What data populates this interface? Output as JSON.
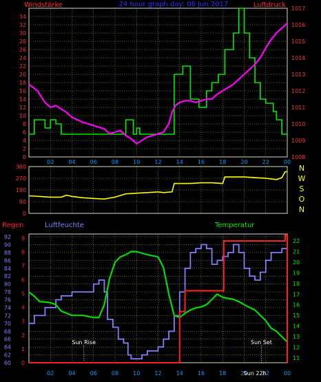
{
  "colors": {
    "background": "#000000",
    "frame": "#d8d8d8",
    "grid": "#ffff00",
    "wind": "#00ee00",
    "pressure": "#ff00ff",
    "winddir": "#ffff00",
    "rain": "#ff2020",
    "humidity": "#8080ff",
    "temperature": "#00dd00",
    "left_labels": "#ff3030",
    "right_labels": "#ff3030",
    "time_labels": "#00a0ff",
    "annotation": "#ffffff"
  },
  "header": {
    "left": "Windstärke",
    "center": "24 hour graph day: 08 Jun 2017",
    "right": "Luftdruck"
  },
  "chart_data": [
    {
      "type": "line",
      "name": "wind-pressure",
      "ylim_left": [
        0,
        36
      ],
      "ylim_right": [
        1008,
        1017
      ],
      "left_ticks": [
        "0",
        "2",
        "4",
        "6",
        "8",
        "10",
        "12",
        "14",
        "16",
        "18",
        "20",
        "22",
        "24",
        "26",
        "28",
        "30",
        "32",
        "34"
      ],
      "right_ticks": [
        "1008",
        "1009",
        "1010",
        "1011",
        "1012",
        "1013",
        "1014",
        "1015",
        "1016",
        "1017"
      ],
      "x_ticks": [
        "02",
        "04",
        "06",
        "08",
        "10",
        "12",
        "14",
        "16",
        "18",
        "20",
        "22",
        "00"
      ],
      "xlim": [
        0,
        24
      ],
      "series": [
        {
          "key": "wind",
          "axis": "left",
          "step": true,
          "x": [
            0,
            0.5,
            1.5,
            2,
            2.5,
            3,
            4,
            5,
            6,
            7,
            8,
            9,
            9.7,
            10,
            10.3,
            11,
            12,
            12.7,
            13.5,
            14.3,
            15,
            15.8,
            16.5,
            17,
            17.6,
            18.2,
            19,
            19.5,
            20,
            20.5,
            21,
            21.5,
            22,
            22.7,
            23,
            23.5,
            24
          ],
          "values": [
            5.5,
            9,
            7,
            9,
            8,
            5.5,
            5.5,
            5.5,
            5.5,
            5.5,
            5.5,
            9,
            5.5,
            7,
            5.5,
            5.5,
            5.5,
            5.5,
            20,
            22,
            14,
            12,
            16,
            18,
            20,
            26,
            30,
            36,
            30,
            24,
            18,
            14,
            13,
            11,
            9,
            5.5,
            5.5
          ]
        },
        {
          "key": "pressure",
          "axis": "right",
          "x": [
            0,
            0.8,
            1.5,
            2,
            2.5,
            3,
            3.5,
            4,
            5,
            6,
            7,
            7.5,
            8,
            8.5,
            9,
            9.5,
            10,
            10.5,
            11,
            11.5,
            12,
            12.5,
            13,
            13.3,
            13.6,
            14,
            14.5,
            15,
            15.5,
            16,
            16.5,
            17,
            17.5,
            18,
            18.5,
            19,
            19.5,
            20,
            20.5,
            21,
            21.5,
            22,
            22.5,
            23,
            23.5,
            24
          ],
          "values": [
            1012.4,
            1012.0,
            1011.3,
            1011.0,
            1011.1,
            1010.9,
            1010.7,
            1010.4,
            1010.1,
            1009.9,
            1009.7,
            1009.4,
            1009.5,
            1009.6,
            1009.3,
            1009.1,
            1008.8,
            1009.0,
            1009.2,
            1009.3,
            1009.4,
            1009.5,
            1010.0,
            1010.7,
            1011.1,
            1011.3,
            1011.4,
            1011.4,
            1011.3,
            1011.4,
            1011.5,
            1011.5,
            1011.8,
            1012.0,
            1012.2,
            1012.4,
            1012.7,
            1013.0,
            1013.3,
            1013.6,
            1014.0,
            1014.6,
            1015.1,
            1015.5,
            1015.8,
            1016.1
          ]
        }
      ]
    },
    {
      "type": "line",
      "name": "wind-direction",
      "ylim": [
        0,
        360
      ],
      "y_ticks": [
        "0",
        "90",
        "180",
        "270",
        "360"
      ],
      "direction_labels": [
        "N",
        "W",
        "S",
        "O",
        "N"
      ],
      "series": [
        {
          "key": "winddir",
          "x": [
            0,
            1,
            2,
            3,
            3.5,
            4,
            5,
            6,
            7,
            8,
            9,
            10,
            11,
            12,
            12.5,
            13.3,
            13.5,
            15,
            16,
            17,
            18,
            18.2,
            20,
            21,
            22,
            22.5,
            23,
            23.5,
            23.8,
            24
          ],
          "values": [
            135,
            130,
            125,
            125,
            140,
            130,
            120,
            115,
            110,
            125,
            150,
            155,
            160,
            165,
            160,
            165,
            230,
            230,
            235,
            235,
            230,
            280,
            280,
            275,
            270,
            265,
            260,
            275,
            320,
            320
          ]
        }
      ]
    },
    {
      "type": "line",
      "name": "rain-humidity-temperature",
      "labels": {
        "rain": "Regen",
        "humidity": "Luftfeuchte",
        "temperature": "Temperatur"
      },
      "ylim_rain": [
        0,
        9
      ],
      "ylim_humidity": [
        60,
        92
      ],
      "ylim_temperature": [
        11,
        22
      ],
      "rain_ticks": [
        "0",
        "1",
        "2",
        "3",
        "4",
        "5",
        "6",
        "7",
        "8",
        "9"
      ],
      "humidity_ticks": [
        "60",
        "62",
        "64",
        "66",
        "68",
        "70",
        "72",
        "74",
        "76",
        "78",
        "80",
        "82",
        "84",
        "86",
        "88",
        "90",
        "92"
      ],
      "temperature_ticks": [
        "11",
        "12",
        "13",
        "14",
        "15",
        "16",
        "17",
        "18",
        "19",
        "20",
        "21",
        "22"
      ],
      "x_ticks": [
        "02",
        "04",
        "06",
        "08",
        "10",
        "12",
        "14",
        "16",
        "18",
        "20",
        "22",
        "00"
      ],
      "annotations": [
        {
          "text": "Sun Rise",
          "x": 5.1
        },
        {
          "text": "Sun Set",
          "x": 21.6
        },
        {
          "text": "Sun 22h",
          "x": 21.0
        }
      ],
      "series": [
        {
          "key": "rain",
          "step": true,
          "x": [
            0,
            13.3,
            14.0,
            14.5,
            17.2,
            18.1,
            23.8,
            24
          ],
          "values": [
            0,
            0,
            3.7,
            5.2,
            5.2,
            8.8,
            9.2,
            0
          ]
        },
        {
          "key": "humidity",
          "step": true,
          "x": [
            0,
            0.5,
            1.0,
            1.5,
            2.0,
            2.5,
            3.0,
            4.0,
            5.0,
            6.0,
            6.5,
            7.0,
            7.3,
            7.8,
            8.3,
            8.8,
            9.2,
            9.5,
            10.0,
            10.5,
            11.0,
            11.5,
            12.0,
            12.5,
            13.0,
            13.5,
            14.0,
            14.5,
            15.0,
            15.5,
            16.0,
            16.5,
            17.0,
            17.5,
            18.0,
            18.5,
            19.0,
            19.5,
            20.0,
            20.5,
            21.0,
            21.5,
            22.0,
            22.5,
            23.0,
            23.5,
            24
          ],
          "values": [
            70,
            72,
            72,
            74,
            74,
            76,
            77,
            78,
            78,
            80,
            81,
            78,
            71,
            69,
            66,
            65,
            62,
            61,
            61,
            62,
            63,
            63,
            64,
            66,
            68,
            72,
            78,
            84,
            88,
            89,
            90,
            89,
            85,
            86,
            87,
            88,
            90,
            88,
            84,
            82,
            81,
            83,
            86,
            88,
            88,
            89,
            90
          ]
        },
        {
          "key": "temperature",
          "x": [
            0,
            0.5,
            1.0,
            2.0,
            2.5,
            3.0,
            4.0,
            5.0,
            6.0,
            6.5,
            7.0,
            7.5,
            8.0,
            8.5,
            9.0,
            9.5,
            10.0,
            11.0,
            12.0,
            12.5,
            13.0,
            13.5,
            14.0,
            14.5,
            15.0,
            15.5,
            16.0,
            16.5,
            17.0,
            17.5,
            18.0,
            18.5,
            19.0,
            19.5,
            20.0,
            21.0,
            22.0,
            22.5,
            23.0,
            23.5,
            24
          ],
          "values": [
            17.2,
            16.8,
            16.3,
            16.2,
            16.0,
            15.4,
            15.0,
            15.0,
            14.8,
            14.8,
            16.0,
            18.5,
            20.0,
            20.5,
            20.7,
            21.0,
            21.0,
            20.7,
            20.5,
            19.5,
            17.0,
            15.0,
            14.8,
            15.2,
            15.5,
            15.7,
            15.8,
            16.0,
            16.5,
            17.0,
            16.7,
            16.6,
            16.5,
            16.3,
            16.0,
            15.5,
            14.5,
            13.8,
            13.5,
            13.0,
            12.5
          ]
        }
      ]
    }
  ]
}
